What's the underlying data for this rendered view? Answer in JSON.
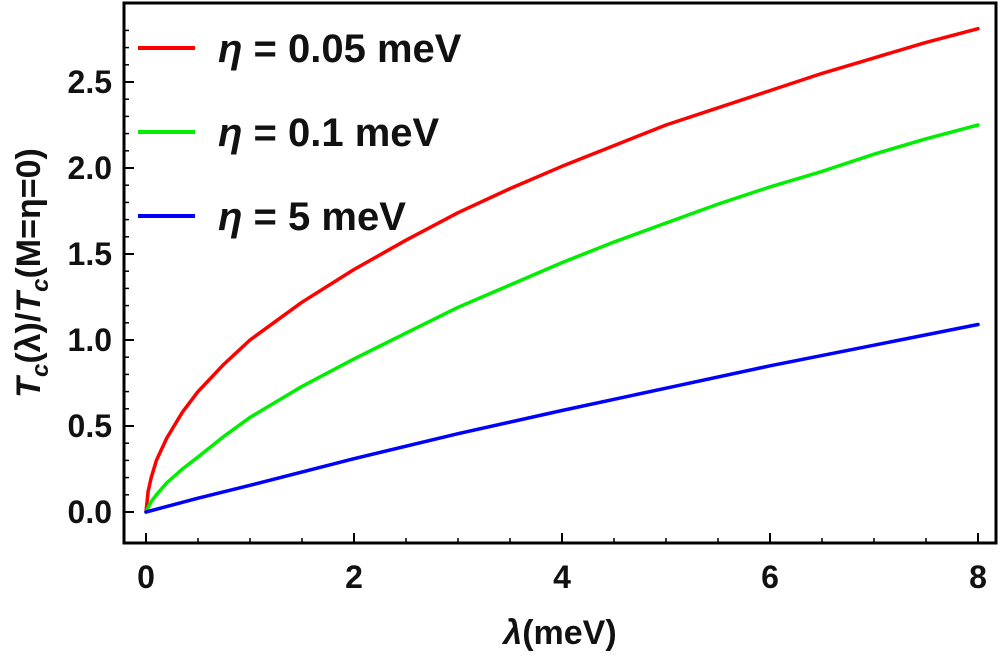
{
  "chart_data": {
    "type": "line",
    "x_label": "λ(meV)",
    "y_label": "T_c(λ)/T_c(M=η=0)",
    "xlim": [
      0,
      8
    ],
    "ylim": [
      -0.15,
      2.9
    ],
    "x_ticks": [
      "0",
      "2",
      "4",
      "6",
      "8"
    ],
    "y_ticks": [
      "0.0",
      "0.5",
      "1.0",
      "1.5",
      "2.0",
      "2.5"
    ],
    "grid": false,
    "legend_position": "top-left",
    "series": [
      {
        "name": "η = 0.05 meV",
        "label_symbol": "η",
        "label_rest": " = 0.05 meV",
        "color": "#ff0000",
        "x": [
          0,
          0.02,
          0.05,
          0.1,
          0.2,
          0.35,
          0.5,
          0.75,
          1,
          1.5,
          2,
          2.5,
          3,
          3.5,
          4,
          4.5,
          5,
          5.5,
          6,
          6.5,
          7,
          7.5,
          8
        ],
        "y": [
          0,
          0.12,
          0.2,
          0.3,
          0.43,
          0.58,
          0.7,
          0.86,
          1.0,
          1.22,
          1.41,
          1.58,
          1.74,
          1.88,
          2.01,
          2.13,
          2.25,
          2.35,
          2.45,
          2.55,
          2.64,
          2.73,
          2.81
        ]
      },
      {
        "name": "η = 0.1 meV",
        "label_symbol": "η",
        "label_rest": " = 0.1 meV",
        "color": "#00ee00",
        "x": [
          0,
          0.05,
          0.1,
          0.2,
          0.35,
          0.5,
          0.75,
          1,
          1.5,
          2,
          2.5,
          3,
          3.5,
          4,
          4.5,
          5,
          5.5,
          6,
          6.5,
          7,
          7.5,
          8
        ],
        "y": [
          0,
          0.06,
          0.1,
          0.17,
          0.25,
          0.32,
          0.44,
          0.55,
          0.73,
          0.89,
          1.04,
          1.19,
          1.32,
          1.45,
          1.57,
          1.68,
          1.79,
          1.89,
          1.98,
          2.08,
          2.17,
          2.25
        ]
      },
      {
        "name": "η = 5 meV",
        "label_symbol": "η",
        "label_rest": " = 5 meV",
        "color": "#0000ff",
        "x": [
          0,
          0.5,
          1,
          2,
          3,
          4,
          5,
          6,
          7,
          8
        ],
        "y": [
          0,
          0.08,
          0.155,
          0.31,
          0.455,
          0.59,
          0.72,
          0.85,
          0.97,
          1.09
        ]
      }
    ]
  }
}
